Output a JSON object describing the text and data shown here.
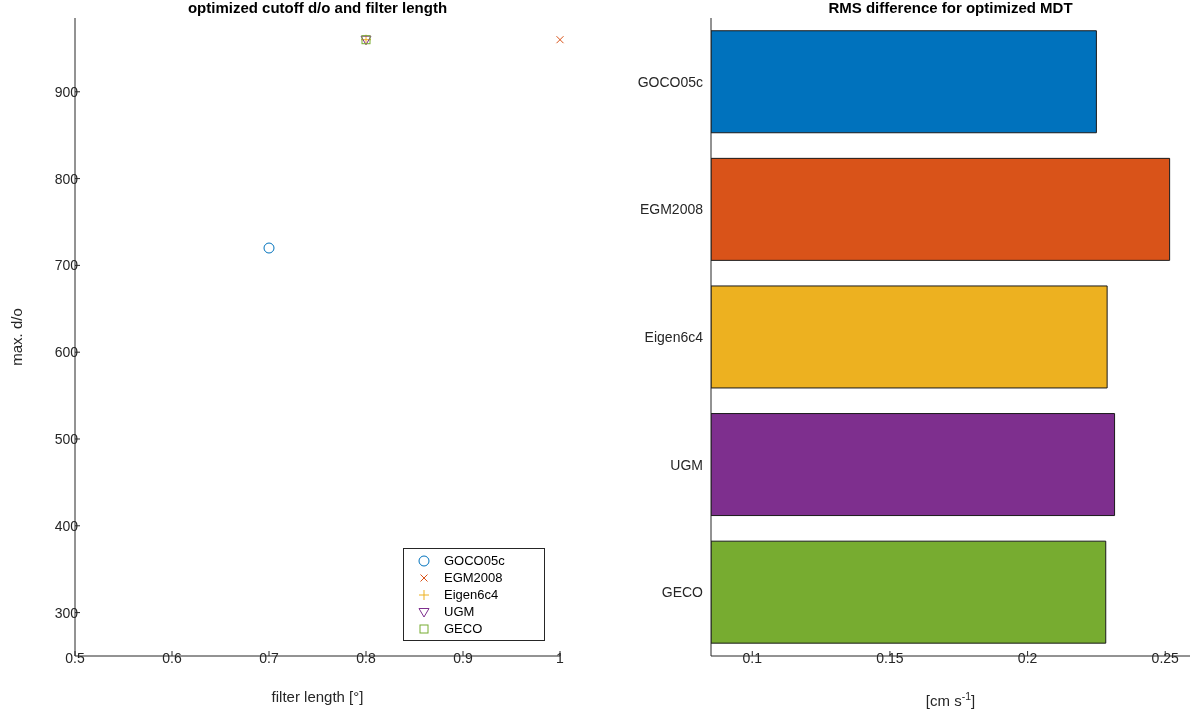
{
  "chart_data": [
    {
      "type": "scatter",
      "title": "optimized cutoff d/o and filter length",
      "xlabel": "filter length [°]",
      "ylabel": "max. d/o",
      "xlim": [
        0.5,
        1
      ],
      "xticks": [
        0.5,
        0.6,
        0.7,
        0.8,
        0.9,
        1
      ],
      "ylim": [
        250,
        985
      ],
      "yticks": [
        300,
        400,
        500,
        600,
        700,
        800,
        900
      ],
      "legend": "bottom right",
      "series": [
        {
          "name": "GOCO05c",
          "color": "#0072bd",
          "marker": "circle",
          "x": [
            0.7
          ],
          "values": [
            720
          ]
        },
        {
          "name": "EGM2008",
          "color": "#d95319",
          "marker": "cross",
          "x": [
            1.0
          ],
          "values": [
            960
          ]
        },
        {
          "name": "Eigen6c4",
          "color": "#edb120",
          "marker": "plus",
          "x": [
            0.8
          ],
          "values": [
            960
          ]
        },
        {
          "name": "UGM",
          "color": "#7e2f8e",
          "marker": "triangle-down",
          "x": [
            0.8
          ],
          "values": [
            960
          ]
        },
        {
          "name": "GECO",
          "color": "#77ac30",
          "marker": "square",
          "x": [
            0.8
          ],
          "values": [
            960
          ]
        }
      ]
    },
    {
      "type": "bar",
      "orientation": "horizontal",
      "title": "RMS difference for optimized MDT",
      "xlabel": "[cm s$^{-1}$]",
      "categories": [
        "GOCO05c",
        "EGM2008",
        "Eigen6c4",
        "UGM",
        "GECO"
      ],
      "values": [
        0.225,
        0.2516,
        0.2289,
        0.2316,
        0.2284
      ],
      "colors": [
        "#0072bd",
        "#d95319",
        "#edb120",
        "#7e2f8e",
        "#77ac30"
      ],
      "xlim": [
        0.085,
        0.259
      ],
      "xticks": [
        0.1,
        0.15,
        0.2,
        0.25
      ]
    }
  ]
}
